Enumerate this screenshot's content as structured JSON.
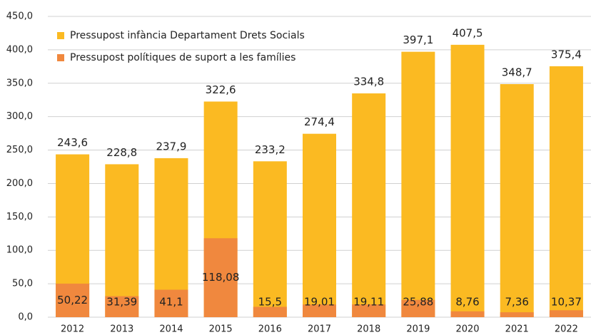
{
  "chart_data": {
    "type": "bar",
    "categories": [
      "2012",
      "2013",
      "2014",
      "2015",
      "2016",
      "2017",
      "2018",
      "2019",
      "2020",
      "2021",
      "2022"
    ],
    "series": [
      {
        "name": "Pressupost infància Departament Drets Socials",
        "color": "#fbba22",
        "values": [
          243.6,
          228.8,
          237.9,
          322.6,
          233.2,
          274.4,
          334.8,
          397.1,
          407.5,
          348.7,
          375.4
        ],
        "value_labels": [
          "243,6",
          "228,8",
          "237,9",
          "322,6",
          "233,2",
          "274,4",
          "334,8",
          "397,1",
          "407,5",
          "348,7",
          "375,4"
        ]
      },
      {
        "name": "Pressupost polítiques de suport a les famílies",
        "color": "#f0883e",
        "values": [
          50.22,
          31.39,
          41.1,
          118.08,
          15.5,
          19.01,
          19.11,
          25.88,
          8.76,
          7.36,
          10.37
        ],
        "value_labels": [
          "50,22",
          "31,39",
          "41,1",
          "118,08",
          "15,5",
          "19,01",
          "19,11",
          "25,88",
          "8,76",
          "7,36",
          "10,37"
        ]
      }
    ],
    "ylim": [
      0,
      450
    ],
    "yticks": [
      {
        "value": 0,
        "label": "0,0"
      },
      {
        "value": 50,
        "label": "50,0"
      },
      {
        "value": 100,
        "label": "100,0"
      },
      {
        "value": 150,
        "label": "150,0"
      },
      {
        "value": 200,
        "label": "200,0"
      },
      {
        "value": 250,
        "label": "250,0"
      },
      {
        "value": 300,
        "label": "300,0"
      },
      {
        "value": 350,
        "label": "350,0"
      },
      {
        "value": 400,
        "label": "400,0"
      },
      {
        "value": 450,
        "label": "450,0"
      }
    ],
    "grid": true,
    "legend": "top-left"
  }
}
